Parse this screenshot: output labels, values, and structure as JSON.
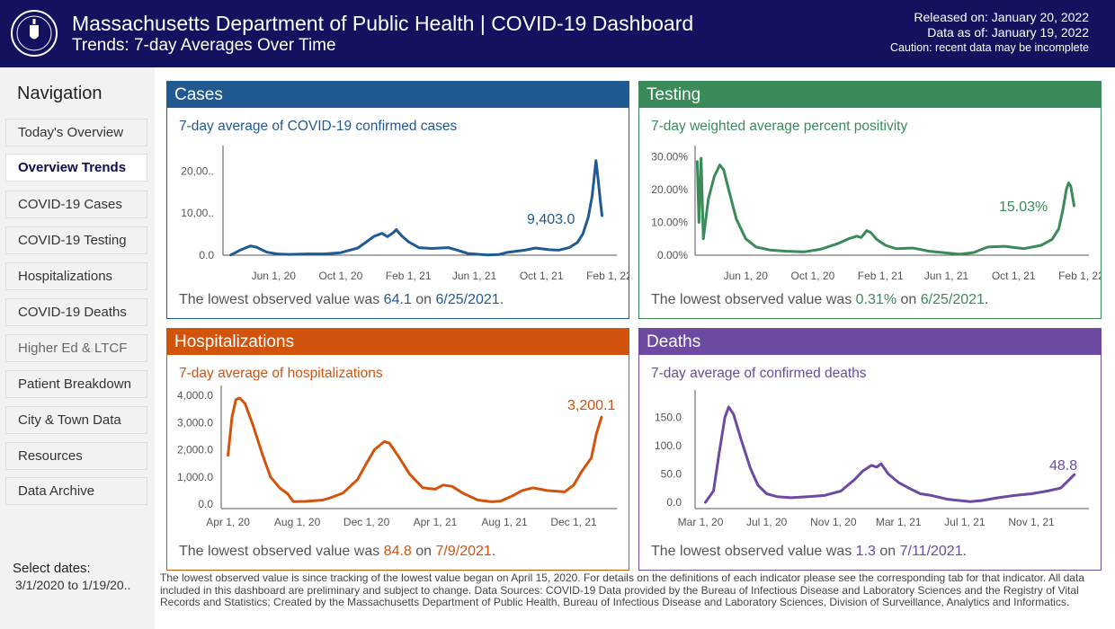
{
  "header": {
    "title": "Massachusetts Department of Public Health  |  COVID-19 Dashboard",
    "subtitle": "Trends: 7-day Averages Over Time",
    "released": "Released on: January 20, 2022",
    "data_as_of": "Data as of: January 19, 2022",
    "caution": "Caution: recent data may be incomplete",
    "seal_icon": "massachusetts-seal-icon"
  },
  "sidebar": {
    "title": "Navigation",
    "items": [
      {
        "label": "Today's Overview"
      },
      {
        "label": "Overview Trends",
        "active": true
      },
      {
        "label": "COVID-19 Cases"
      },
      {
        "label": "COVID-19 Testing"
      },
      {
        "label": "Hospitalizations"
      },
      {
        "label": "COVID-19 Deaths"
      },
      {
        "label": "Higher Ed & LTCF"
      },
      {
        "label": "Patient Breakdown"
      },
      {
        "label": "City & Town Data"
      },
      {
        "label": "Resources"
      },
      {
        "label": "Data Archive"
      }
    ],
    "select_label": "Select dates:",
    "select_value": "3/1/2020 to 1/19/20.."
  },
  "colors": {
    "header": "#14125f",
    "cases": "#1f5a93",
    "testing": "#3a8a5a",
    "hospitalizations": "#d2530c",
    "deaths": "#6c4aa2"
  },
  "panels": {
    "cases": {
      "title": "Cases",
      "subtitle": "7-day average of COVID-19 confirmed cases",
      "latest_label": "9,403.0",
      "lowest_prefix": "The lowest observed value was ",
      "lowest_value": "64.1",
      "lowest_on": " on ",
      "lowest_date": "6/25/2021",
      "lowest_end": "."
    },
    "testing": {
      "title": "Testing",
      "subtitle": "7-day weighted average percent positivity",
      "latest_label": "15.03%",
      "lowest_prefix": "The lowest observed value was ",
      "lowest_value": "0.31%",
      "lowest_on": " on ",
      "lowest_date": "6/25/2021",
      "lowest_end": "."
    },
    "hospitalizations": {
      "title": "Hospitalizations",
      "subtitle": "7-day average of hospitalizations",
      "latest_label": "3,200.1",
      "lowest_prefix": "The lowest observed value was ",
      "lowest_value": "84.8",
      "lowest_on": " on ",
      "lowest_date": "7/9/2021",
      "lowest_end": "."
    },
    "deaths": {
      "title": "Deaths",
      "subtitle": "7-day average of confirmed deaths",
      "latest_label": "48.8",
      "lowest_prefix": "The lowest observed value was ",
      "lowest_value": "1.3",
      "lowest_on": " on ",
      "lowest_date": "7/11/2021",
      "lowest_end": "."
    }
  },
  "chart_data": [
    {
      "type": "line",
      "name": "cases",
      "xlim": [
        "2020-03-01",
        "2022-02-15"
      ],
      "ylim": [
        0,
        25000
      ],
      "yticks": [
        {
          "v": 0,
          "label": "0.0"
        },
        {
          "v": 10000,
          "label": "10,00.."
        },
        {
          "v": 20000,
          "label": "20,00.."
        }
      ],
      "xticks": [
        {
          "d": "2020-06-01",
          "label": "Jun 1, 20"
        },
        {
          "d": "2020-10-01",
          "label": "Oct 1, 20"
        },
        {
          "d": "2021-02-01",
          "label": "Feb 1, 21"
        },
        {
          "d": "2021-06-01",
          "label": "Jun 1, 21"
        },
        {
          "d": "2021-10-01",
          "label": "Oct 1, 21"
        },
        {
          "d": "2022-02-01",
          "label": "Feb 1, 22"
        }
      ],
      "points": [
        [
          "2020-03-15",
          50
        ],
        [
          "2020-04-01",
          1200
        ],
        [
          "2020-04-20",
          2200
        ],
        [
          "2020-05-01",
          1900
        ],
        [
          "2020-05-20",
          700
        ],
        [
          "2020-06-10",
          250
        ],
        [
          "2020-07-01",
          200
        ],
        [
          "2020-08-01",
          300
        ],
        [
          "2020-09-01",
          300
        ],
        [
          "2020-10-01",
          600
        ],
        [
          "2020-11-01",
          1700
        ],
        [
          "2020-11-15",
          3000
        ],
        [
          "2020-12-01",
          4500
        ],
        [
          "2020-12-15",
          5200
        ],
        [
          "2020-12-25",
          4400
        ],
        [
          "2021-01-05",
          5400
        ],
        [
          "2021-01-10",
          6100
        ],
        [
          "2021-01-20",
          4600
        ],
        [
          "2021-02-01",
          3200
        ],
        [
          "2021-02-20",
          1800
        ],
        [
          "2021-03-15",
          1600
        ],
        [
          "2021-04-01",
          1700
        ],
        [
          "2021-04-15",
          1800
        ],
        [
          "2021-05-01",
          1200
        ],
        [
          "2021-05-20",
          400
        ],
        [
          "2021-06-25",
          64
        ],
        [
          "2021-07-15",
          150
        ],
        [
          "2021-08-01",
          700
        ],
        [
          "2021-09-01",
          1200
        ],
        [
          "2021-09-20",
          1700
        ],
        [
          "2021-10-15",
          1300
        ],
        [
          "2021-11-01",
          1200
        ],
        [
          "2021-11-20",
          1800
        ],
        [
          "2021-12-05",
          3000
        ],
        [
          "2021-12-15",
          5000
        ],
        [
          "2021-12-25",
          9000
        ],
        [
          "2022-01-01",
          14000
        ],
        [
          "2022-01-08",
          22500
        ],
        [
          "2022-01-12",
          18000
        ],
        [
          "2022-01-16",
          13000
        ],
        [
          "2022-01-19",
          9403
        ]
      ]
    },
    {
      "type": "line",
      "name": "testing",
      "xlim": [
        "2020-03-01",
        "2022-02-15"
      ],
      "ylim": [
        0,
        32
      ],
      "yticks": [
        {
          "v": 0,
          "label": "0.00%"
        },
        {
          "v": 10,
          "label": "10.00%"
        },
        {
          "v": 20,
          "label": "20.00%"
        },
        {
          "v": 30,
          "label": "30.00%"
        }
      ],
      "xticks": [
        {
          "d": "2020-06-01",
          "label": "Jun 1, 20"
        },
        {
          "d": "2020-10-01",
          "label": "Oct 1, 20"
        },
        {
          "d": "2021-02-01",
          "label": "Feb 1, 21"
        },
        {
          "d": "2021-06-01",
          "label": "Jun 1, 21"
        },
        {
          "d": "2021-10-01",
          "label": "Oct 1, 21"
        },
        {
          "d": "2022-02-01",
          "label": "Feb 1, 22"
        }
      ],
      "points": [
        [
          "2020-03-05",
          28.5
        ],
        [
          "2020-03-08",
          10
        ],
        [
          "2020-03-12",
          29.5
        ],
        [
          "2020-03-16",
          5
        ],
        [
          "2020-03-25",
          17
        ],
        [
          "2020-04-05",
          24
        ],
        [
          "2020-04-15",
          27.5
        ],
        [
          "2020-04-22",
          26
        ],
        [
          "2020-05-01",
          20
        ],
        [
          "2020-05-15",
          11
        ],
        [
          "2020-06-01",
          5
        ],
        [
          "2020-06-20",
          2.5
        ],
        [
          "2020-07-15",
          1.6
        ],
        [
          "2020-08-15",
          1.2
        ],
        [
          "2020-09-15",
          1.0
        ],
        [
          "2020-10-15",
          1.8
        ],
        [
          "2020-11-15",
          3.5
        ],
        [
          "2020-12-05",
          5.0
        ],
        [
          "2020-12-20",
          5.8
        ],
        [
          "2020-12-28",
          5.4
        ],
        [
          "2021-01-07",
          7.5
        ],
        [
          "2021-01-15",
          6.8
        ],
        [
          "2021-01-25",
          4.8
        ],
        [
          "2021-02-10",
          3.0
        ],
        [
          "2021-03-01",
          2.0
        ],
        [
          "2021-04-01",
          2.2
        ],
        [
          "2021-05-01",
          1.2
        ],
        [
          "2021-06-25",
          0.31
        ],
        [
          "2021-07-20",
          0.8
        ],
        [
          "2021-08-15",
          2.5
        ],
        [
          "2021-09-15",
          2.7
        ],
        [
          "2021-10-20",
          2.0
        ],
        [
          "2021-11-20",
          3.0
        ],
        [
          "2021-12-10",
          4.8
        ],
        [
          "2021-12-22",
          8.0
        ],
        [
          "2021-12-30",
          14
        ],
        [
          "2022-01-05",
          20
        ],
        [
          "2022-01-09",
          22
        ],
        [
          "2022-01-13",
          21
        ],
        [
          "2022-01-19",
          15.03
        ]
      ]
    },
    {
      "type": "line",
      "name": "hospitalizations",
      "xlim": [
        "2020-03-20",
        "2022-02-15"
      ],
      "ylim": [
        0,
        4200
      ],
      "yticks": [
        {
          "v": 0,
          "label": "0.0"
        },
        {
          "v": 1000,
          "label": "1,000.0"
        },
        {
          "v": 2000,
          "label": "2,000.0"
        },
        {
          "v": 3000,
          "label": "3,000.0"
        },
        {
          "v": 4000,
          "label": "4,000.0"
        }
      ],
      "xticks": [
        {
          "d": "2020-04-01",
          "label": "Apr 1, 20"
        },
        {
          "d": "2020-08-01",
          "label": "Aug 1, 20"
        },
        {
          "d": "2020-12-01",
          "label": "Dec 1, 20"
        },
        {
          "d": "2021-04-01",
          "label": "Apr 1, 21"
        },
        {
          "d": "2021-08-01",
          "label": "Aug 1, 21"
        },
        {
          "d": "2021-12-01",
          "label": "Dec 1, 21"
        }
      ],
      "points": [
        [
          "2020-04-01",
          1800
        ],
        [
          "2020-04-08",
          3200
        ],
        [
          "2020-04-15",
          3850
        ],
        [
          "2020-04-22",
          3900
        ],
        [
          "2020-05-01",
          3700
        ],
        [
          "2020-05-15",
          2900
        ],
        [
          "2020-06-01",
          1800
        ],
        [
          "2020-06-15",
          1000
        ],
        [
          "2020-07-01",
          600
        ],
        [
          "2020-07-15",
          380
        ],
        [
          "2020-07-25",
          90
        ],
        [
          "2020-08-15",
          100
        ],
        [
          "2020-09-15",
          150
        ],
        [
          "2020-10-01",
          250
        ],
        [
          "2020-10-20",
          400
        ],
        [
          "2020-11-15",
          900
        ],
        [
          "2020-12-01",
          1500
        ],
        [
          "2020-12-15",
          2000
        ],
        [
          "2021-01-01",
          2300
        ],
        [
          "2021-01-10",
          2250
        ],
        [
          "2021-01-25",
          1800
        ],
        [
          "2021-02-15",
          1100
        ],
        [
          "2021-03-10",
          600
        ],
        [
          "2021-04-01",
          550
        ],
        [
          "2021-04-15",
          700
        ],
        [
          "2021-05-01",
          650
        ],
        [
          "2021-05-20",
          400
        ],
        [
          "2021-06-15",
          150
        ],
        [
          "2021-07-09",
          85
        ],
        [
          "2021-07-25",
          110
        ],
        [
          "2021-08-15",
          300
        ],
        [
          "2021-09-01",
          500
        ],
        [
          "2021-09-20",
          600
        ],
        [
          "2021-10-15",
          500
        ],
        [
          "2021-11-15",
          450
        ],
        [
          "2021-12-01",
          700
        ],
        [
          "2021-12-15",
          1200
        ],
        [
          "2022-01-01",
          1700
        ],
        [
          "2022-01-10",
          2600
        ],
        [
          "2022-01-19",
          3200.1
        ]
      ]
    },
    {
      "type": "line",
      "name": "deaths",
      "xlim": [
        "2020-02-20",
        "2022-02-15"
      ],
      "ylim": [
        0,
        190
      ],
      "yticks": [
        {
          "v": 0,
          "label": "0.0"
        },
        {
          "v": 50,
          "label": "50.0"
        },
        {
          "v": 100,
          "label": "100.0"
        },
        {
          "v": 150,
          "label": "150.0"
        }
      ],
      "xticks": [
        {
          "d": "2020-03-01",
          "label": "Mar 1, 20"
        },
        {
          "d": "2020-07-01",
          "label": "Jul 1, 20"
        },
        {
          "d": "2020-11-01",
          "label": "Nov 1, 20"
        },
        {
          "d": "2021-03-01",
          "label": "Mar 1, 21"
        },
        {
          "d": "2021-07-01",
          "label": "Jul 1, 21"
        },
        {
          "d": "2021-11-01",
          "label": "Nov 1, 21"
        }
      ],
      "points": [
        [
          "2020-03-10",
          0
        ],
        [
          "2020-03-25",
          20
        ],
        [
          "2020-04-05",
          90
        ],
        [
          "2020-04-15",
          150
        ],
        [
          "2020-04-22",
          168
        ],
        [
          "2020-05-01",
          155
        ],
        [
          "2020-05-15",
          110
        ],
        [
          "2020-06-01",
          60
        ],
        [
          "2020-06-15",
          30
        ],
        [
          "2020-07-01",
          15
        ],
        [
          "2020-07-20",
          10
        ],
        [
          "2020-08-15",
          8
        ],
        [
          "2020-09-15",
          10
        ],
        [
          "2020-10-15",
          12
        ],
        [
          "2020-11-15",
          20
        ],
        [
          "2020-12-10",
          40
        ],
        [
          "2020-12-25",
          55
        ],
        [
          "2021-01-10",
          65
        ],
        [
          "2021-01-20",
          62
        ],
        [
          "2021-01-28",
          68
        ],
        [
          "2021-02-10",
          50
        ],
        [
          "2021-03-01",
          35
        ],
        [
          "2021-03-20",
          25
        ],
        [
          "2021-04-10",
          15
        ],
        [
          "2021-05-01",
          12
        ],
        [
          "2021-06-01",
          5
        ],
        [
          "2021-07-11",
          1.3
        ],
        [
          "2021-08-01",
          3
        ],
        [
          "2021-09-01",
          8
        ],
        [
          "2021-10-01",
          12
        ],
        [
          "2021-11-01",
          15
        ],
        [
          "2021-12-01",
          20
        ],
        [
          "2021-12-25",
          25
        ],
        [
          "2022-01-10",
          40
        ],
        [
          "2022-01-19",
          48.8
        ]
      ]
    }
  ],
  "footnote": "The lowest observed value is since tracking of the lowest value began on April 15, 2020. For details on the definitions of each indicator please see the corresponding tab for that indicator. All data included in this dashboard are preliminary and subject to change. Data Sources: COVID-19 Data provided by the Bureau of Infectious Disease and Laboratory Sciences and the Registry of Vital Records and Statistics; Created by the Massachusetts Department of Public Health, Bureau of Infectious Disease and Laboratory Sciences, Division of Surveillance, Analytics and Informatics."
}
